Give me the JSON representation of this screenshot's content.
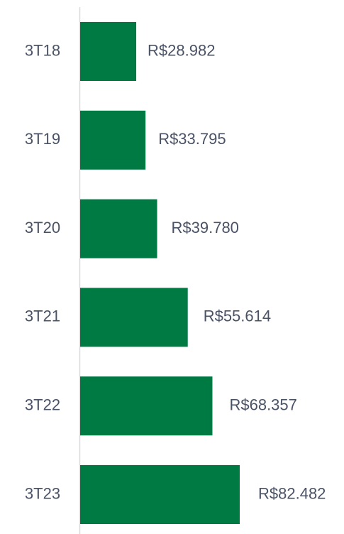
{
  "chart_data": {
    "type": "bar",
    "orientation": "horizontal",
    "categories": [
      "3T18",
      "3T19",
      "3T20",
      "3T21",
      "3T22",
      "3T23"
    ],
    "values": [
      28982,
      33795,
      39780,
      55614,
      68357,
      82482
    ],
    "value_labels": [
      "R$28.982",
      "R$33.795",
      "R$39.780",
      "R$55.614",
      "R$68.357",
      "R$82.482"
    ],
    "color": "#007a43"
  }
}
